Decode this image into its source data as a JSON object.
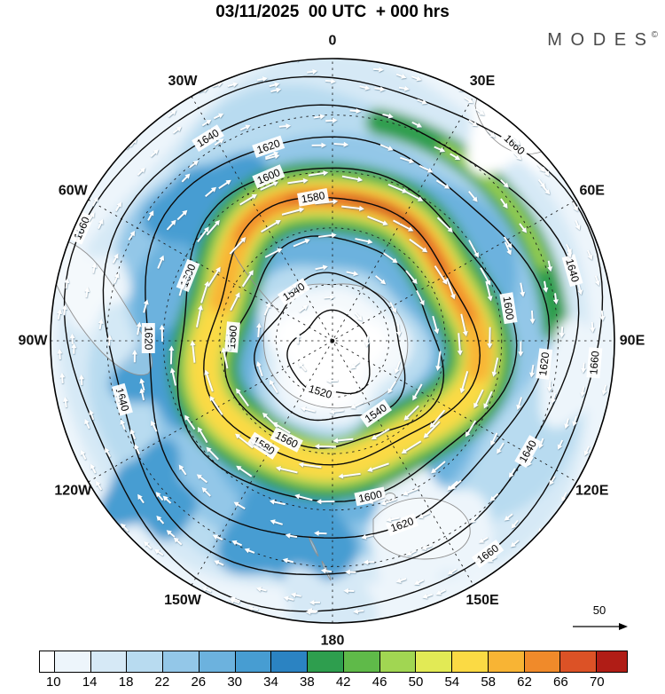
{
  "title": "03/11/2025  00 UTC  + 000 hrs",
  "brand": {
    "name": "MODES",
    "mark": "©"
  },
  "chart_data": {
    "type": "heatmap",
    "subtype": "filled-contour-polar-map-with-wind-vectors",
    "projection": "south-polar-stereographic",
    "shaded_field": {
      "legend_ticks": [
        "10",
        "14",
        "18",
        "22",
        "26",
        "30",
        "34",
        "38",
        "42",
        "46",
        "50",
        "54",
        "58",
        "62",
        "66",
        "70"
      ],
      "cell_colors": [
        "#ffffff",
        "#edf5fb",
        "#d6e9f6",
        "#b8dbf0",
        "#93c7e8",
        "#6cb2de",
        "#479dd2",
        "#2b83c2",
        "#2e9e4e",
        "#5fba49",
        "#a1d652",
        "#e2ea55",
        "#fbda44",
        "#f8b434",
        "#f08a2a",
        "#dc5226",
        "#b01d16"
      ]
    },
    "contour_field": {
      "levels": [
        1520,
        1540,
        1560,
        1580,
        1600,
        1620,
        1640,
        1660
      ],
      "labels": [
        {
          "level": 1520,
          "angles": [
            197
          ]
        },
        {
          "level": 1540,
          "angles": [
            327,
            145
          ]
        },
        {
          "level": 1560,
          "angles": [
            275,
            207
          ]
        },
        {
          "level": 1580,
          "angles": [
            350,
            213
          ]
        },
        {
          "level": 1600,
          "angles": [
            337,
            81,
            168,
            292
          ]
        },
        {
          "level": 1620,
          "angles": [
            341,
            270,
            160,
            97
          ]
        },
        {
          "level": 1640,
          "angles": [
            328,
            254,
            120,
            74
          ]
        },
        {
          "level": 1660,
          "angles": [
            294,
            43,
            95,
            144
          ]
        }
      ]
    },
    "meridians": [
      {
        "label": "0",
        "deg": 0
      },
      {
        "label": "30E",
        "deg": 30
      },
      {
        "label": "60E",
        "deg": 60
      },
      {
        "label": "90E",
        "deg": 90
      },
      {
        "label": "120E",
        "deg": 120
      },
      {
        "label": "150E",
        "deg": 150
      },
      {
        "label": "180",
        "deg": 180
      },
      {
        "label": "150W",
        "deg": 210
      },
      {
        "label": "120W",
        "deg": 240
      },
      {
        "label": "90W",
        "deg": 270
      },
      {
        "label": "60W",
        "deg": 300
      },
      {
        "label": "30W",
        "deg": 330
      }
    ],
    "latitude_circles": 4,
    "vector_field": "white wind arrows, circumpolar westerly (clockwise) flow",
    "reference_vector": {
      "label": "50"
    }
  }
}
